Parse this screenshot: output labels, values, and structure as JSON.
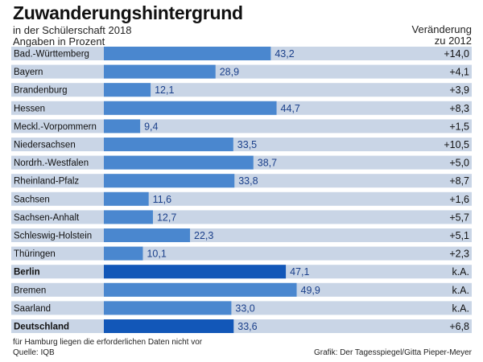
{
  "header": {
    "title": "Zuwanderungshintergrund",
    "subtitle1": "in der Schülerschaft 2018",
    "subtitle2": "Angaben in Prozent",
    "change_label1": "Veränderung",
    "change_label2": "zu 2012"
  },
  "footer": {
    "note": "für Hamburg liegen die erforderlichen Daten nicht vor",
    "source": "Quelle: IQB",
    "credit": "Grafik: Der Tagesspiegel/Gitta Pieper-Meyer"
  },
  "colors": {
    "row_bg": "#c9d5e6",
    "bar": "#4a87cf",
    "bar_highlight": "#1257b8",
    "value_text": "#1a3f8a"
  },
  "chart_data": {
    "type": "bar",
    "orientation": "horizontal",
    "title": "Zuwanderungshintergrund",
    "subtitle": "in der Schülerschaft 2018, Angaben in Prozent",
    "xlim": [
      0,
      55
    ],
    "categories": [
      "Bad.-Württemberg",
      "Bayern",
      "Brandenburg",
      "Hessen",
      "Meckl.-Vorpommern",
      "Niedersachsen",
      "Nordrh.-Westfalen",
      "Rheinland-Pfalz",
      "Sachsen",
      "Sachsen-Anhalt",
      "Schleswig-Holstein",
      "Thüringen",
      "Berlin",
      "Bremen",
      "Saarland",
      "Deutschland"
    ],
    "values": [
      43.2,
      28.9,
      12.1,
      44.7,
      9.4,
      33.5,
      38.7,
      33.8,
      11.6,
      12.7,
      22.3,
      10.1,
      47.1,
      49.9,
      33.0,
      33.6
    ],
    "value_labels": [
      "43,2",
      "28,9",
      "12,1",
      "44,7",
      "9,4",
      "33,5",
      "38,7",
      "33,8",
      "11,6",
      "12,7",
      "22,3",
      "10,1",
      "47,1",
      "49,9",
      "33,0",
      "33,6"
    ],
    "change": [
      "+14,0",
      "+4,1",
      "+3,9",
      "+8,3",
      "+1,5",
      "+10,5",
      "+5,0",
      "+8,7",
      "+1,6",
      "+5,7",
      "+5,1",
      "+2,3",
      "k.A.",
      "k.A.",
      "k.A.",
      "+6,8"
    ],
    "bold_categories": [
      "Berlin",
      "Deutschland"
    ],
    "highlight_categories": [
      "Berlin",
      "Deutschland"
    ]
  }
}
